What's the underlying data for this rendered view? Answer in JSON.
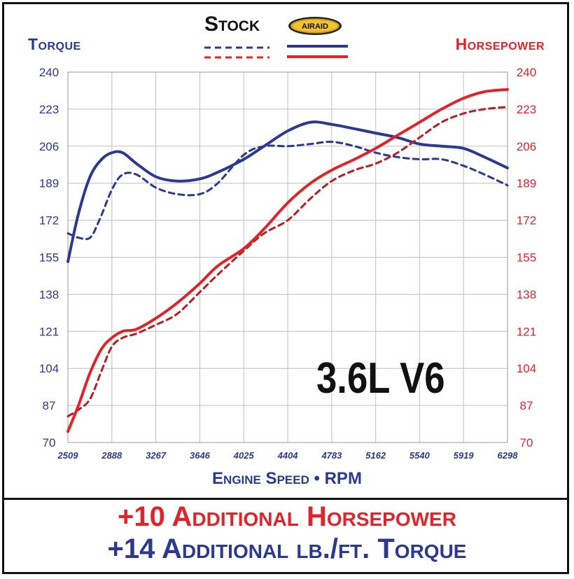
{
  "chart_data": {
    "type": "line",
    "title": "3.6L V6",
    "xlabel": "Engine Speed • RPM",
    "ylabel_left": "Torque",
    "ylabel_right": "Horsepower",
    "x_ticks": [
      "2509",
      "2888",
      "3267",
      "3646",
      "4025",
      "4404",
      "4783",
      "5162",
      "5540",
      "5919",
      "6298"
    ],
    "y_ticks": [
      "240",
      "223",
      "206",
      "189",
      "172",
      "155",
      "138",
      "121",
      "104",
      "87",
      "70"
    ],
    "ylim": [
      70,
      240
    ],
    "xlim": [
      2509,
      6298
    ],
    "legend": {
      "stock_label": "Stock",
      "airaid_label": "AIRAID",
      "placement": "top-center"
    },
    "series": [
      {
        "name": "Stock",
        "measure": "Torque",
        "style": "dashed",
        "color": "#2b3990",
        "x": [
          2509,
          2600,
          2700,
          2780,
          2888,
          2980,
          3100,
          3267,
          3450,
          3646,
          3800,
          4025,
          4200,
          4404,
          4600,
          4783,
          4980,
          5162,
          5350,
          5540,
          5730,
          5919,
          6100,
          6298
        ],
        "y": [
          166,
          164,
          164,
          172,
          186,
          193,
          193,
          187,
          184,
          184,
          189,
          202,
          206,
          206,
          207,
          208,
          206,
          203,
          201,
          200,
          200,
          197,
          193,
          188
        ]
      },
      {
        "name": "AIRAID",
        "measure": "Torque",
        "style": "solid",
        "color": "#2b3990",
        "x": [
          2509,
          2600,
          2700,
          2800,
          2888,
          2980,
          3100,
          3267,
          3450,
          3646,
          3800,
          4025,
          4200,
          4404,
          4600,
          4783,
          4980,
          5162,
          5350,
          5540,
          5730,
          5919,
          6100,
          6298
        ],
        "y": [
          153,
          175,
          192,
          200,
          203,
          203,
          198,
          192,
          190,
          191,
          194,
          200,
          206,
          213,
          217,
          216,
          214,
          212,
          210,
          207,
          206,
          205,
          201,
          196
        ]
      },
      {
        "name": "Stock",
        "measure": "Horsepower",
        "style": "dashed",
        "color": "#b91c22",
        "x": [
          2509,
          2600,
          2700,
          2800,
          2888,
          2980,
          3100,
          3267,
          3450,
          3646,
          3800,
          4025,
          4200,
          4404,
          4600,
          4783,
          4980,
          5162,
          5350,
          5540,
          5730,
          5919,
          6100,
          6298
        ],
        "y": [
          82,
          85,
          90,
          103,
          114,
          118,
          120,
          124,
          129,
          139,
          147,
          158,
          166,
          172,
          182,
          190,
          195,
          198,
          203,
          210,
          217,
          221,
          223,
          224
        ]
      },
      {
        "name": "AIRAID",
        "measure": "Horsepower",
        "style": "solid",
        "color": "#e2232a",
        "x": [
          2509,
          2600,
          2700,
          2800,
          2888,
          2980,
          3100,
          3267,
          3450,
          3646,
          3800,
          4025,
          4200,
          4404,
          4600,
          4783,
          4980,
          5162,
          5350,
          5540,
          5730,
          5919,
          6100,
          6298
        ],
        "y": [
          75,
          87,
          102,
          113,
          118,
          121,
          122,
          127,
          134,
          143,
          151,
          159,
          168,
          180,
          189,
          195,
          200,
          205,
          211,
          217,
          223,
          228,
          231,
          232
        ]
      }
    ],
    "grid": true
  },
  "footer": {
    "hp_gain": "+10 Additional Horsepower",
    "tq_gain": "+14 Additional lb./ft. Torque"
  },
  "colors": {
    "torque": "#2b3990",
    "horsepower": "#e2232a",
    "grid": "#bfbfbf"
  }
}
